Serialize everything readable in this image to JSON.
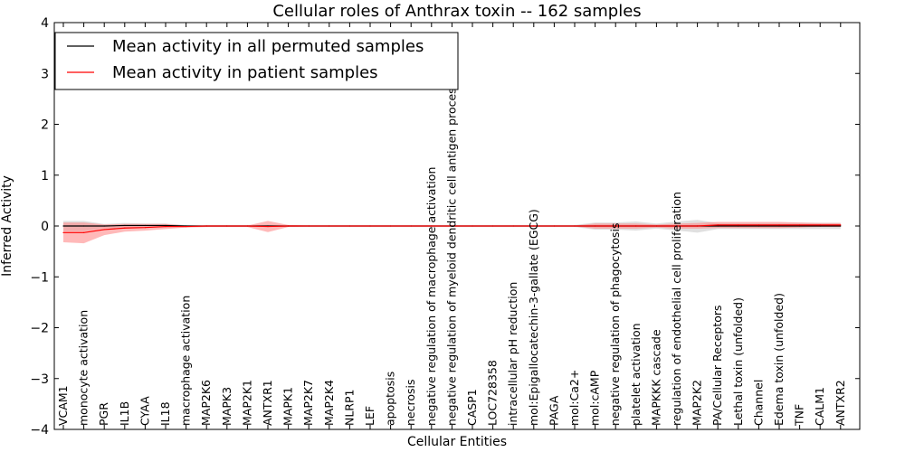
{
  "chart_data": {
    "type": "line",
    "title": "Cellular roles of Anthrax toxin -- 162 samples",
    "xlabel": "Cellular Entities",
    "ylabel": "Inferred Activity",
    "ylim": [
      -4,
      4
    ],
    "yticks": [
      -4,
      -3,
      -2,
      -1,
      0,
      1,
      2,
      3,
      4
    ],
    "legend_position": "top-left",
    "categories": [
      "VCAM1",
      "monocyte activation",
      "PGR",
      "IL1B",
      "CYAA",
      "IL18",
      "macrophage activation",
      "MAP2K6",
      "MAPK3",
      "MAP2K1",
      "ANTXR1",
      "MAPK1",
      "MAP2K7",
      "MAP2K4",
      "NLRP1",
      "LEF",
      "apoptosis",
      "necrosis",
      "negative regulation of macrophage activation",
      "negative regulation of myeloid dendritic cell antigen processing and",
      "CASP1",
      "LOC728358",
      "intracellular pH reduction",
      "mol:Epigallocatechin-3-gallate (EGCG)",
      "PAGA",
      "mol:Ca2+",
      "mol:cAMP",
      "negative regulation of phagocytosis",
      "platelet activation",
      "MAPKKK cascade",
      "regulation of endothelial cell proliferation",
      "MAP2K2",
      "PA/Cellular Receptors",
      "Lethal toxin (unfolded)",
      "Channel",
      "Edema toxin (unfolded)",
      "TNF",
      "CALM1",
      "ANTXR2"
    ],
    "series": [
      {
        "name": "Mean activity in all permuted samples",
        "color": "#000000",
        "band_color": "#bbbbbb",
        "values": [
          0,
          0,
          0,
          0.01,
          0.01,
          0.01,
          0,
          0,
          0,
          0,
          0,
          0,
          0,
          0,
          0,
          0,
          0,
          0,
          0,
          0,
          0,
          0,
          0,
          0,
          0,
          0,
          0,
          0,
          0,
          0,
          0,
          0,
          0,
          0,
          0,
          0,
          0,
          0,
          0
        ],
        "upper": [
          0.1,
          0.1,
          0.04,
          0.06,
          0.05,
          0.05,
          0.02,
          0.02,
          0.02,
          0.02,
          0.02,
          0.02,
          0.02,
          0.02,
          0.02,
          0.02,
          0.02,
          0.02,
          0.02,
          0.02,
          0.02,
          0.02,
          0.02,
          0.02,
          0.02,
          0.02,
          0.07,
          0.07,
          0.09,
          0.05,
          0.09,
          0.12,
          0.06,
          0.06,
          0.06,
          0.06,
          0.06,
          0.06,
          0.06
        ],
        "lower": [
          -0.1,
          -0.1,
          -0.04,
          -0.05,
          -0.03,
          -0.03,
          -0.02,
          -0.02,
          -0.02,
          -0.02,
          -0.02,
          -0.02,
          -0.02,
          -0.02,
          -0.02,
          -0.02,
          -0.02,
          -0.02,
          -0.02,
          -0.02,
          -0.02,
          -0.02,
          -0.02,
          -0.02,
          -0.02,
          -0.02,
          -0.07,
          -0.07,
          -0.09,
          -0.05,
          -0.09,
          -0.13,
          -0.06,
          -0.06,
          -0.06,
          -0.06,
          -0.06,
          -0.06,
          -0.06
        ]
      },
      {
        "name": "Mean activity in patient samples",
        "color": "#ff0000",
        "band_color": "#ff8080",
        "values": [
          -0.13,
          -0.13,
          -0.07,
          -0.04,
          -0.03,
          -0.01,
          -0.01,
          0,
          0,
          0,
          -0.01,
          0,
          0,
          0,
          0,
          0,
          0,
          0,
          0,
          0,
          0,
          0,
          0,
          0,
          0,
          0,
          0,
          0,
          0,
          0,
          0,
          0,
          0.02,
          0.02,
          0.02,
          0.02,
          0.02,
          0.02,
          0.02
        ],
        "upper": [
          0.07,
          0.07,
          0.03,
          0.04,
          0.04,
          0.04,
          0.01,
          0.01,
          0.01,
          0.01,
          0.1,
          0.02,
          0.01,
          0.01,
          0.01,
          0.01,
          0.01,
          0.01,
          0.01,
          0.01,
          0.01,
          0.01,
          0.01,
          0.01,
          0.01,
          0.01,
          0.05,
          0.05,
          0.05,
          0.03,
          0.05,
          0.06,
          0.08,
          0.08,
          0.08,
          0.08,
          0.07,
          0.06,
          0.06
        ],
        "lower": [
          -0.32,
          -0.34,
          -0.18,
          -0.11,
          -0.09,
          -0.06,
          -0.03,
          -0.02,
          -0.02,
          -0.02,
          -0.12,
          -0.02,
          -0.01,
          -0.01,
          -0.01,
          -0.01,
          -0.01,
          -0.01,
          -0.01,
          -0.01,
          -0.01,
          -0.01,
          -0.01,
          -0.01,
          -0.01,
          -0.01,
          -0.05,
          -0.05,
          -0.05,
          -0.03,
          -0.05,
          -0.05,
          -0.04,
          -0.04,
          -0.04,
          -0.04,
          -0.03,
          -0.02,
          -0.02
        ]
      }
    ]
  }
}
